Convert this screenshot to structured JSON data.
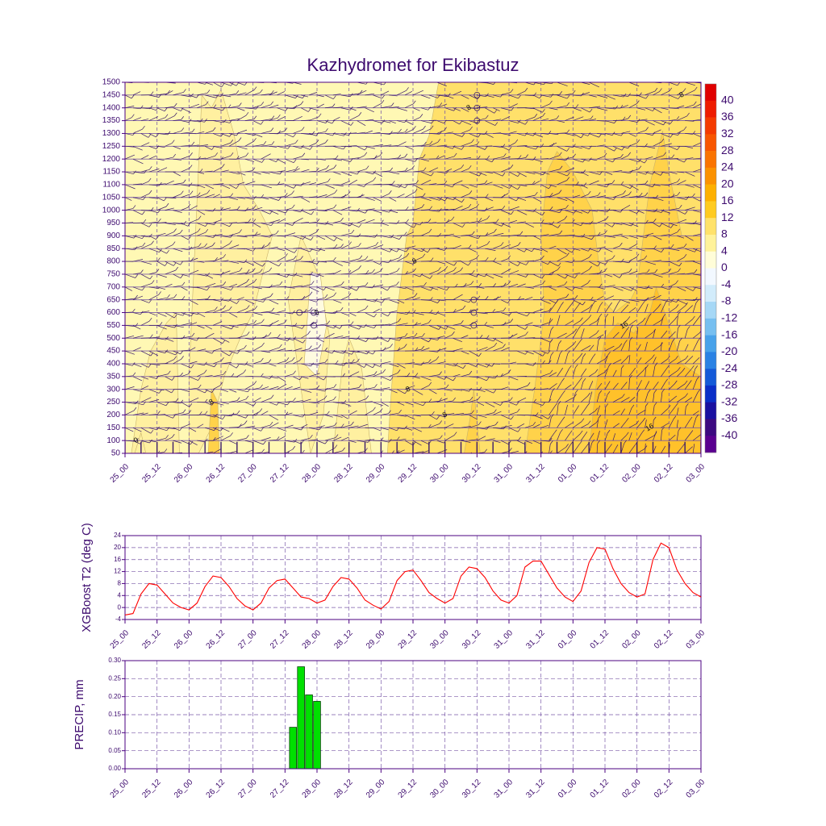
{
  "colors": {
    "axis": "#4b0082",
    "text": "#3d0a6e",
    "grid": "#7a5aa8",
    "line": "#ff0000",
    "bar_fill": "#00e000",
    "bar_stroke": "#004400",
    "barb": "#3a1a6a"
  },
  "chart_data": [
    {
      "type": "heatmap",
      "title": "Kazhydromet for Ekibastuz",
      "xlabel": "",
      "ylabel": "",
      "x_ticks": [
        "25_00",
        "25_12",
        "26_00",
        "26_12",
        "27_00",
        "27_12",
        "28_00",
        "28_12",
        "29_00",
        "29_12",
        "30_00",
        "30_12",
        "31_00",
        "31_12",
        "01_00",
        "01_12",
        "02_00",
        "02_12",
        "03_00"
      ],
      "y_ticks": [
        50,
        100,
        150,
        200,
        250,
        300,
        350,
        400,
        450,
        500,
        550,
        600,
        650,
        700,
        750,
        800,
        850,
        900,
        950,
        1000,
        1050,
        1100,
        1150,
        1200,
        1250,
        1300,
        1350,
        1400,
        1450,
        1500
      ],
      "ylim": [
        50,
        1500
      ],
      "colorbar": {
        "labels": [
          40,
          36,
          32,
          28,
          24,
          20,
          16,
          12,
          8,
          4,
          0,
          -4,
          -8,
          -12,
          -16,
          -20,
          -24,
          -28,
          -32,
          -36,
          -40
        ],
        "colors": [
          "#e00000",
          "#ee1c00",
          "#f43a00",
          "#f85600",
          "#fa7400",
          "#fb9200",
          "#fdb000",
          "#ffcb20",
          "#ffe26a",
          "#fff29a",
          "#fffdd8",
          "#f2f8ff",
          "#d2ecfb",
          "#a6d8f6",
          "#76bff0",
          "#48a2ea",
          "#2a82e4",
          "#145ad8",
          "#0a2ec8",
          "#1a10a0",
          "#3c0a80",
          "#5a0090"
        ]
      },
      "contour_labels": [
        {
          "text": "0",
          "x": 0.35,
          "y": 100
        },
        {
          "text": "8",
          "x": 2.7,
          "y": 250
        },
        {
          "text": "0",
          "x": 6.0,
          "y": 600
        },
        {
          "text": "8",
          "x": 8.85,
          "y": 300
        },
        {
          "text": "8",
          "x": 9.05,
          "y": 800
        },
        {
          "text": "8",
          "x": 10.0,
          "y": 200
        },
        {
          "text": "8",
          "x": 10.75,
          "y": 1400
        },
        {
          "text": "16",
          "x": 15.6,
          "y": 550
        },
        {
          "text": "16",
          "x": 16.4,
          "y": 150
        },
        {
          "text": "8",
          "x": 17.4,
          "y": 1450
        }
      ],
      "calm_marks": [
        {
          "x": 5.45,
          "y": 600
        },
        {
          "x": 5.9,
          "y": 600
        },
        {
          "x": 5.9,
          "y": 550
        },
        {
          "x": 11.0,
          "y": 1450
        },
        {
          "x": 11.0,
          "y": 1400
        },
        {
          "x": 11.0,
          "y": 1350
        },
        {
          "x": 10.9,
          "y": 650
        },
        {
          "x": 10.9,
          "y": 600
        },
        {
          "x": 10.9,
          "y": 550
        }
      ]
    },
    {
      "type": "line",
      "title": "",
      "xlabel": "",
      "ylabel": "XGBoost T2 (deg C)",
      "x_ticks": [
        "25_00",
        "25_12",
        "26_00",
        "26_12",
        "27_00",
        "27_12",
        "28_00",
        "28_12",
        "29_00",
        "29_12",
        "30_00",
        "30_12",
        "31_00",
        "31_12",
        "01_00",
        "01_12",
        "02_00",
        "02_12",
        "03_00"
      ],
      "y_ticks": [
        -4,
        0,
        4,
        8,
        12,
        16,
        20,
        24
      ],
      "ylim": [
        -4,
        24
      ],
      "series": [
        {
          "name": "T2",
          "x": [
            0,
            0.25,
            0.5,
            0.75,
            1,
            1.25,
            1.5,
            1.75,
            2,
            2.25,
            2.5,
            2.75,
            3,
            3.25,
            3.5,
            3.75,
            4,
            4.25,
            4.5,
            4.75,
            5,
            5.25,
            5.5,
            5.75,
            6,
            6.25,
            6.5,
            6.75,
            7,
            7.25,
            7.5,
            7.75,
            8,
            8.25,
            8.5,
            8.75,
            9,
            9.25,
            9.5,
            9.75,
            10,
            10.25,
            10.5,
            10.75,
            11,
            11.25,
            11.5,
            11.75,
            12,
            12.25,
            12.5,
            12.75,
            13,
            13.25,
            13.5,
            13.75,
            14,
            14.25,
            14.5,
            14.75,
            15,
            15.25,
            15.5,
            15.75,
            16,
            16.25,
            16.5,
            16.75,
            17,
            17.25,
            17.5,
            17.75,
            18
          ],
          "values": [
            -2.5,
            -2,
            4.5,
            8,
            7.5,
            4.5,
            1.5,
            0,
            -0.8,
            1.5,
            7,
            10.5,
            10,
            7,
            3,
            0.5,
            -0.8,
            1.5,
            6.5,
            9,
            9.5,
            6.5,
            3.5,
            3,
            1.5,
            2.5,
            7,
            10,
            9.5,
            6.5,
            2.5,
            0.8,
            -0.5,
            2,
            9,
            12,
            12.5,
            9,
            5,
            3,
            1.5,
            3,
            10.5,
            13.5,
            13,
            10,
            5.5,
            2.5,
            1.5,
            4,
            13.5,
            15.5,
            15.5,
            11,
            6.5,
            3.5,
            2,
            5.5,
            15,
            20,
            19.5,
            13,
            8,
            5,
            3.5,
            4.5,
            16,
            21.5,
            20,
            12.5,
            8,
            5,
            3.5
          ]
        }
      ]
    },
    {
      "type": "bar",
      "title": "",
      "xlabel": "",
      "ylabel": "PRECIP, mm",
      "x_ticks": [
        "25_00",
        "25_12",
        "26_00",
        "26_12",
        "27_00",
        "27_12",
        "28_00",
        "28_12",
        "29_00",
        "29_12",
        "30_00",
        "30_12",
        "31_00",
        "31_12",
        "01_00",
        "01_12",
        "02_00",
        "02_12",
        "03_00"
      ],
      "y_ticks": [
        "0.00",
        "0.05",
        "0.10",
        "0.15",
        "0.20",
        "0.25",
        "0.30"
      ],
      "ylim": [
        0,
        0.3
      ],
      "x": [
        5.25,
        5.5,
        5.75,
        6.0
      ],
      "values": [
        0.115,
        0.283,
        0.205,
        0.187
      ]
    }
  ]
}
